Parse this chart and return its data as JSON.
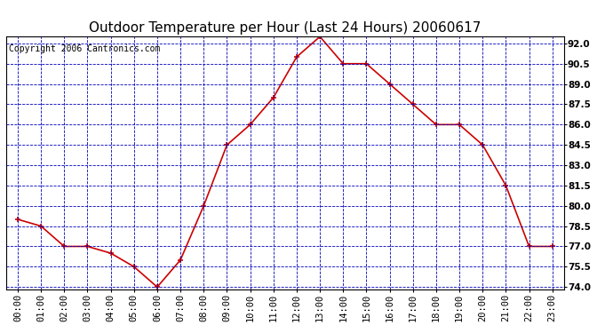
{
  "title": "Outdoor Temperature per Hour (Last 24 Hours) 20060617",
  "copyright_text": "Copyright 2006 Cantronics.com",
  "hours": [
    0,
    1,
    2,
    3,
    4,
    5,
    6,
    7,
    8,
    9,
    10,
    11,
    12,
    13,
    14,
    15,
    16,
    17,
    18,
    19,
    20,
    21,
    22,
    23
  ],
  "hour_labels": [
    "00:00",
    "01:00",
    "02:00",
    "03:00",
    "04:00",
    "05:00",
    "06:00",
    "07:00",
    "08:00",
    "09:00",
    "10:00",
    "11:00",
    "12:00",
    "13:00",
    "14:00",
    "15:00",
    "16:00",
    "17:00",
    "18:00",
    "19:00",
    "20:00",
    "21:00",
    "22:00",
    "23:00"
  ],
  "temperatures": [
    79.0,
    78.5,
    77.0,
    77.0,
    76.5,
    75.5,
    74.0,
    76.0,
    80.0,
    84.5,
    86.0,
    88.0,
    91.0,
    92.5,
    90.5,
    90.5,
    89.0,
    87.5,
    86.0,
    86.0,
    84.5,
    81.5,
    77.0,
    77.0
  ],
  "line_color": "#cc0000",
  "marker_color": "#cc0000",
  "background_color": "#ffffff",
  "plot_background_color": "#ffffff",
  "grid_color": "#0000bb",
  "axis_color": "#000000",
  "yticks": [
    74.0,
    75.5,
    77.0,
    78.5,
    80.0,
    81.5,
    83.0,
    84.5,
    86.0,
    87.5,
    89.0,
    90.5,
    92.0
  ],
  "title_fontsize": 11,
  "copyright_fontsize": 7,
  "tick_fontsize": 7.5
}
